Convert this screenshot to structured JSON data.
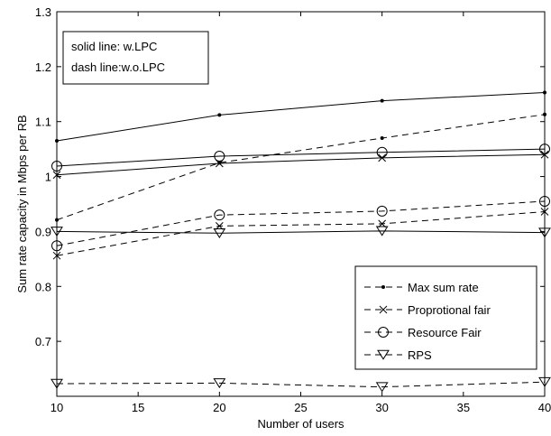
{
  "chart_data": {
    "type": "line",
    "title": "",
    "xlabel": "Number of users",
    "ylabel": "Sum rate capacity in Mbps per RB",
    "xlim": [
      10,
      40
    ],
    "ylim": [
      0.6,
      1.3
    ],
    "x_ticks": [
      10,
      15,
      20,
      25,
      30,
      35,
      40
    ],
    "y_ticks": [
      0.7,
      0.8,
      0.9,
      1,
      1.1,
      1.2,
      1.3
    ],
    "grid": false,
    "annotation_lines": [
      "solid line: w.LPC",
      "dash line:w.o.LPC"
    ],
    "annotation_placement": "top-left",
    "legend_placement": "bottom-right",
    "legend": [
      {
        "label": "Max sum rate",
        "marker": "dot"
      },
      {
        "label": "Proprotional fair",
        "marker": "x"
      },
      {
        "label": "Resource Fair",
        "marker": "circle"
      },
      {
        "label": "RPS",
        "marker": "triangle-down"
      }
    ],
    "x": [
      10,
      20,
      30,
      40
    ],
    "series": [
      {
        "marker": "dot",
        "line": "solid",
        "values": [
          1.065,
          1.112,
          1.138,
          1.153
        ]
      },
      {
        "marker": "x",
        "line": "solid",
        "values": [
          1.003,
          1.024,
          1.034,
          1.04
        ]
      },
      {
        "marker": "circle",
        "line": "solid",
        "values": [
          1.019,
          1.037,
          1.044,
          1.05
        ]
      },
      {
        "marker": "triangle-down",
        "line": "solid",
        "values": [
          0.9,
          0.897,
          0.901,
          0.898
        ]
      },
      {
        "marker": "dot",
        "line": "dashed",
        "values": [
          0.921,
          1.025,
          1.07,
          1.113
        ]
      },
      {
        "marker": "x",
        "line": "dashed",
        "values": [
          0.856,
          0.91,
          0.914,
          0.936
        ]
      },
      {
        "marker": "circle",
        "line": "dashed",
        "values": [
          0.874,
          0.93,
          0.937,
          0.955
        ]
      },
      {
        "marker": "triangle-down",
        "line": "dashed",
        "values": [
          0.623,
          0.624,
          0.617,
          0.626
        ]
      }
    ]
  }
}
